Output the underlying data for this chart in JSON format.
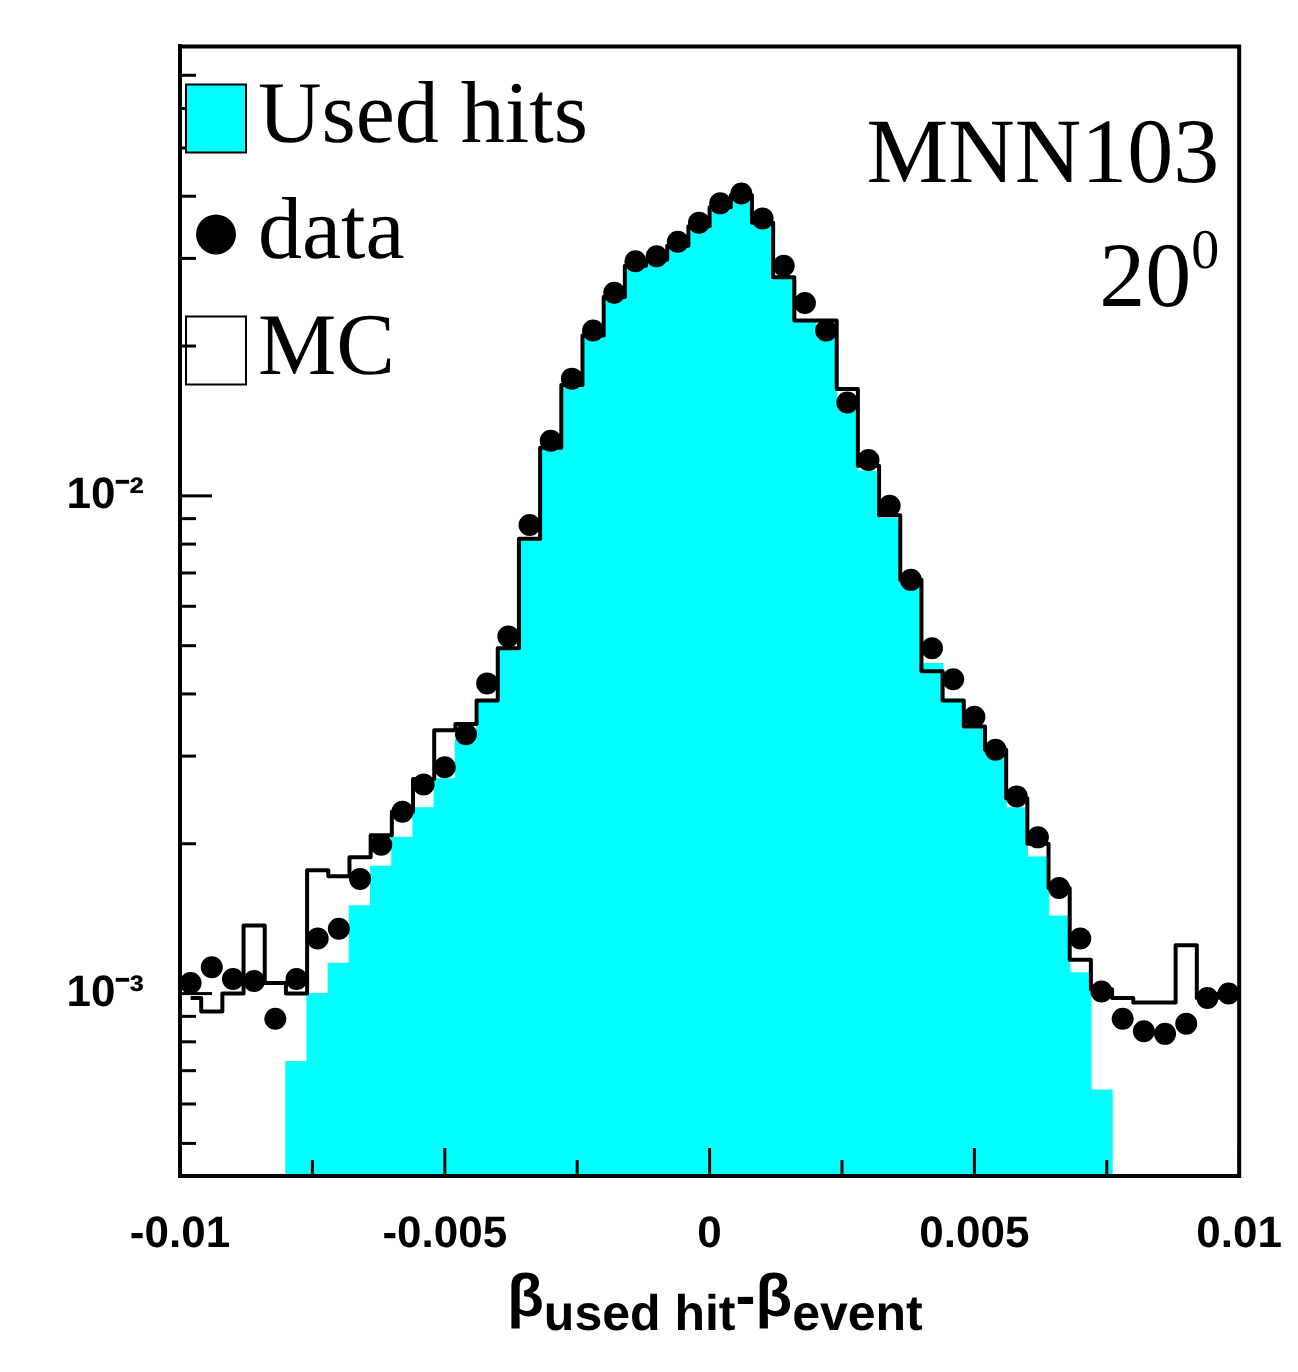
{
  "chart_data": {
    "type": "histogram",
    "xlabel": "β$_{used hit}$-β$_{event}$",
    "annotations": [
      "MNN103",
      "20$^{0}$"
    ],
    "bins": [
      -0.01,
      -0.0096,
      -0.0092,
      -0.0088,
      -0.0084,
      -0.008,
      -0.0076,
      -0.0072,
      -0.0068,
      -0.0064,
      -0.006,
      -0.0056,
      -0.0052,
      -0.0048,
      -0.0044,
      -0.004,
      -0.0036,
      -0.0032,
      -0.0028,
      -0.0024,
      -0.002,
      -0.0016,
      -0.0012,
      -0.0008,
      -0.0004,
      0,
      0.0004,
      0.0008,
      0.0012,
      0.0016,
      0.002,
      0.0024,
      0.0028,
      0.0032,
      0.0036,
      0.004,
      0.0044,
      0.0048,
      0.0052,
      0.0056,
      0.006,
      0.0064,
      0.0068,
      0.0072,
      0.0076,
      0.008,
      0.0084,
      0.0088,
      0.0092,
      0.0096,
      0.01
    ],
    "series": [
      {
        "name": "Used hits",
        "color": "#00ffff",
        "values": [
          null,
          null,
          null,
          null,
          null,
          0.00073,
          0.001,
          0.00115,
          0.0015,
          0.0018,
          0.00206,
          0.00236,
          0.0027,
          0.00324,
          0.00388,
          0.00494,
          0.0082,
          0.0125,
          0.0167,
          0.021,
          0.025,
          0.029,
          0.0296,
          0.0316,
          0.0345,
          0.0378,
          0.0395,
          0.035,
          0.0275,
          0.0225,
          0.021,
          0.0155,
          0.0112,
          0.009,
          0.0066,
          0.0046,
          0.0039,
          0.0034,
          0.003,
          0.00236,
          0.00188,
          0.00143,
          0.0011,
          0.00064,
          null,
          null,
          null,
          null,
          null,
          null
        ]
      },
      {
        "name": "data",
        "type": "scatter",
        "marker": "circle",
        "color": "#000000",
        "x": [
          -0.0098,
          -0.0094,
          -0.009,
          -0.0086,
          -0.0082,
          -0.0078,
          -0.0074,
          -0.007,
          -0.0066,
          -0.0062,
          -0.0058,
          -0.0054,
          -0.005,
          -0.0046,
          -0.0042,
          -0.0038,
          -0.0034,
          -0.003,
          -0.0026,
          -0.0022,
          -0.0018,
          -0.0014,
          -0.001,
          -0.0006,
          -0.0002,
          0.0002,
          0.0006,
          0.001,
          0.0014,
          0.0018,
          0.0022,
          0.0026,
          0.003,
          0.0034,
          0.0038,
          0.0042,
          0.0046,
          0.005,
          0.0054,
          0.0058,
          0.0062,
          0.0066,
          0.007,
          0.0074,
          0.0078,
          0.0082,
          0.0086,
          0.009,
          0.0094,
          0.0098
        ],
        "values": [
          0.00105,
          0.00113,
          0.00107,
          0.00106,
          0.00089,
          0.00107,
          0.00129,
          0.00135,
          0.0017,
          0.00199,
          0.00232,
          0.00263,
          0.00285,
          0.00332,
          0.0042,
          0.00522,
          0.00874,
          0.0129,
          0.0172,
          0.0215,
          0.0256,
          0.0296,
          0.0303,
          0.0324,
          0.0354,
          0.0387,
          0.0405,
          0.0361,
          0.029,
          0.0244,
          0.0215,
          0.0154,
          0.0118,
          0.00955,
          0.00678,
          0.00494,
          0.00428,
          0.0036,
          0.00309,
          0.00249,
          0.00206,
          0.00163,
          0.00129,
          0.00101,
          0.00089,
          0.00084,
          0.00083,
          0.00087,
          0.00098,
          0.001
        ]
      },
      {
        "name": "MC",
        "type": "step",
        "color": "#000000",
        "x": [
          -0.0098,
          -0.0094,
          -0.009,
          -0.0086,
          -0.0082,
          -0.0078,
          -0.0074,
          -0.007,
          -0.0066,
          -0.0062,
          -0.0058,
          -0.0054,
          -0.005,
          -0.0046,
          -0.0042,
          -0.0038,
          -0.0034,
          -0.003,
          -0.0026,
          -0.0022,
          -0.0018,
          -0.0014,
          -0.001,
          -0.0006,
          -0.0002,
          0.0002,
          0.0006,
          0.001,
          0.0014,
          0.0018,
          0.0022,
          0.0026,
          0.003,
          0.0034,
          0.0038,
          0.0042,
          0.0046,
          0.005,
          0.0054,
          0.0058,
          0.0062,
          0.0066,
          0.007,
          0.0074,
          0.0078,
          0.0082,
          0.0086,
          0.009,
          0.0094,
          0.0098
        ],
        "values": [
          0.00098,
          0.00092,
          0.001,
          0.00137,
          0.00105,
          0.001,
          0.00177,
          0.00172,
          0.00188,
          0.00208,
          0.00232,
          0.0027,
          0.00338,
          0.00348,
          0.00388,
          0.00494,
          0.0082,
          0.0125,
          0.0167,
          0.021,
          0.0251,
          0.029,
          0.0298,
          0.0318,
          0.0348,
          0.038,
          0.0402,
          0.0354,
          0.0275,
          0.0225,
          0.0225,
          0.0164,
          0.0115,
          0.00914,
          0.00678,
          0.00444,
          0.00388,
          0.00344,
          0.00309,
          0.00247,
          0.002,
          0.00163,
          0.00117,
          0.00102,
          0.00098,
          0.00096,
          0.00096,
          0.00125,
          0.00098,
          0.001
        ]
      }
    ],
    "xlim": [
      -0.01,
      0.01
    ],
    "xticks": [
      -0.01,
      {
        "value": -0.0075,
        "label": null
      },
      -0.005,
      {
        "value": -0.0025,
        "label": null
      },
      0,
      {
        "value": 0.0025,
        "label": null
      },
      0.005,
      {
        "value": 0.0075,
        "label": null
      },
      0.01
    ],
    "ylim": [
      0.00043,
      0.08
    ],
    "yticks": [
      {
        "value": 0.0005,
        "label": null
      },
      {
        "value": 0.0006,
        "label": null
      },
      {
        "value": 0.0007,
        "label": null
      },
      {
        "value": 0.0008,
        "label": null
      },
      {
        "value": 0.0009,
        "label": null
      },
      {
        "value": 0.001,
        "label": "10⁻³"
      },
      {
        "value": 0.002,
        "label": null
      },
      {
        "value": 0.003,
        "label": null
      },
      {
        "value": 0.004,
        "label": null
      },
      {
        "value": 0.005,
        "label": null
      },
      {
        "value": 0.006,
        "label": null
      },
      {
        "value": 0.007,
        "label": null
      },
      {
        "value": 0.008,
        "label": null
      },
      {
        "value": 0.009,
        "label": null
      },
      {
        "value": 0.01,
        "label": "10⁻²"
      },
      {
        "value": 0.02,
        "label": null
      },
      {
        "value": 0.03,
        "label": null
      },
      {
        "value": 0.04,
        "label": null
      },
      {
        "value": 0.05,
        "label": null
      },
      {
        "value": 0.06,
        "label": null
      },
      {
        "value": 0.07,
        "label": null
      }
    ],
    "log": true,
    "legend": "top left"
  }
}
